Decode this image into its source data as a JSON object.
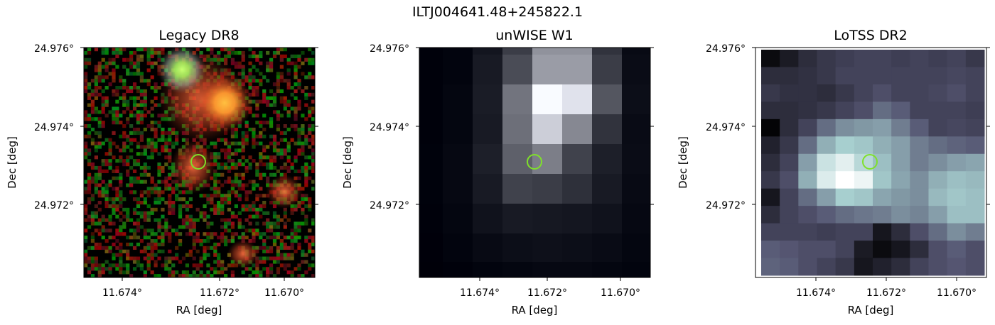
{
  "figure": {
    "suptitle": "ILTJ004641.48+245822.1",
    "marker_color": "#7fe02a"
  },
  "panels": [
    {
      "title": "Legacy DR8",
      "image_style": "noisy-optical-rgb",
      "xlabel": "RA [deg]",
      "ylabel": "Dec [deg]",
      "xticks": [
        "11.674°",
        "11.672°",
        "11.670°"
      ],
      "yticks": [
        "24.976°",
        "24.974°",
        "24.972°"
      ]
    },
    {
      "title": "unWISE W1",
      "image_style": "infrared-grayscale",
      "xlabel": "RA [deg]",
      "ylabel": "Dec [deg]",
      "xticks": [
        "11.674°",
        "11.672°",
        "11.670°"
      ],
      "yticks": [
        "24.976°",
        "24.974°",
        "24.972°"
      ]
    },
    {
      "title": "LoTSS DR2",
      "image_style": "radio-bone",
      "xlabel": "RA [deg]",
      "ylabel": "Dec [deg]",
      "xticks": [
        "11.674°",
        "11.672°",
        "11.670°"
      ],
      "yticks": [
        "24.976°",
        "24.974°",
        "24.972°"
      ]
    }
  ]
}
